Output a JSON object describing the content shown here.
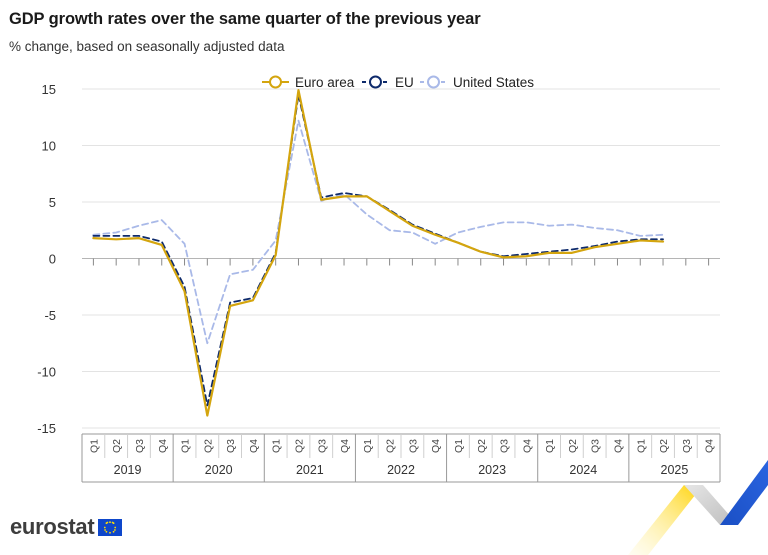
{
  "title": "GDP growth rates over the same quarter of the previous year",
  "subtitle": "% change, based on seasonally adjusted data",
  "logo_text": "eurostat",
  "chart_data": {
    "type": "line",
    "title": "GDP growth rates over the same quarter of the previous year",
    "subtitle": "% change, based on seasonally adjusted data",
    "ylim": [
      -15,
      15
    ],
    "yticks": [
      15,
      10,
      5,
      0,
      -5,
      -10,
      -15
    ],
    "ytick_labels": [
      "15",
      "10",
      "5",
      "0",
      "-5",
      "-10",
      "-15"
    ],
    "grid": true,
    "legend_position": "top",
    "years": [
      "2019",
      "2020",
      "2021",
      "2022",
      "2023",
      "2024",
      "2025"
    ],
    "quarters": [
      "Q1",
      "Q2",
      "Q3",
      "Q4"
    ],
    "x": [
      "2019Q1",
      "2019Q2",
      "2019Q3",
      "2019Q4",
      "2020Q1",
      "2020Q2",
      "2020Q3",
      "2020Q4",
      "2021Q1",
      "2021Q2",
      "2021Q3",
      "2021Q4",
      "2022Q1",
      "2022Q2",
      "2022Q3",
      "2022Q4",
      "2023Q1",
      "2023Q2",
      "2023Q3",
      "2023Q4",
      "2024Q1",
      "2024Q2",
      "2024Q3",
      "2024Q4",
      "2025Q1",
      "2025Q2",
      "2025Q3",
      "2025Q4"
    ],
    "series": [
      {
        "name": "Euro area",
        "color": "#d4a50e",
        "dash": "solid",
        "values": [
          1.8,
          1.7,
          1.8,
          1.2,
          -2.9,
          -13.9,
          -4.2,
          -3.7,
          0.3,
          14.9,
          5.2,
          5.5,
          5.5,
          4.2,
          2.9,
          2.1,
          1.4,
          0.6,
          0.1,
          0.2,
          0.5,
          0.5,
          1.0,
          1.3,
          1.6,
          1.5,
          null,
          null
        ]
      },
      {
        "name": "EU",
        "color": "#0e2a6b",
        "dash": "dashed",
        "values": [
          2.0,
          2.0,
          2.0,
          1.5,
          -2.5,
          -13.0,
          -3.9,
          -3.5,
          0.5,
          14.5,
          5.4,
          5.8,
          5.5,
          4.3,
          3.0,
          2.2,
          1.4,
          0.6,
          0.2,
          0.4,
          0.6,
          0.8,
          1.1,
          1.5,
          1.7,
          1.7,
          null,
          null
        ]
      },
      {
        "name": "United States",
        "color": "#a9b9e8",
        "dash": "dashed",
        "values": [
          2.1,
          2.3,
          2.9,
          3.4,
          1.3,
          -7.5,
          -1.4,
          -1.0,
          1.6,
          12.2,
          5.1,
          5.7,
          3.9,
          2.5,
          2.3,
          1.3,
          2.3,
          2.8,
          3.2,
          3.2,
          2.9,
          3.0,
          2.7,
          2.5,
          2.0,
          2.1,
          null,
          null
        ]
      }
    ]
  }
}
